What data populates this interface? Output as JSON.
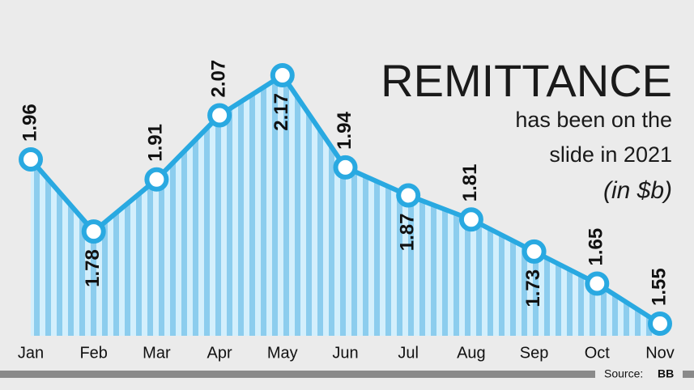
{
  "chart_data": {
    "type": "line",
    "title": "REMITTANCE",
    "subtitle": [
      "has been on the",
      "slide in 2021"
    ],
    "unit_note": "(in $b)",
    "categories": [
      "Jan",
      "Feb",
      "Mar",
      "Apr",
      "May",
      "Jun",
      "Jul",
      "Aug",
      "Sep",
      "Oct",
      "Nov"
    ],
    "values": [
      1.96,
      1.78,
      1.91,
      2.07,
      2.17,
      1.94,
      1.87,
      1.81,
      1.73,
      1.65,
      1.55
    ],
    "color": "#29a9e1",
    "source_label": "Source:",
    "source": "BB"
  }
}
